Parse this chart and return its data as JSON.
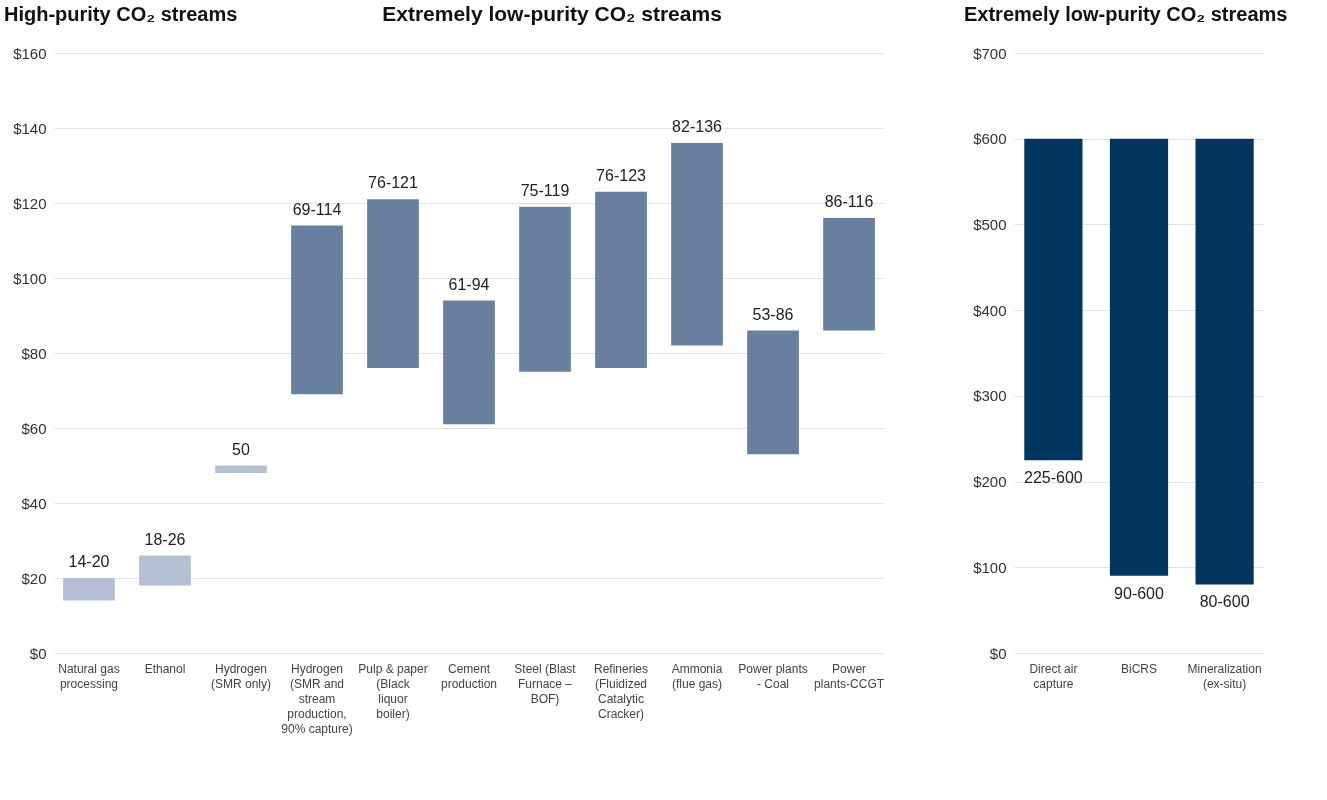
{
  "chart_data": [
    {
      "type": "bar",
      "title": "High-purity CO₂ streams",
      "annotations": [
        "Extremely low-purity CO₂ streams"
      ],
      "categories": [
        "Natural gas processing",
        "Ethanol",
        "Hydrogen (SMR only)",
        "Hydrogen (SMR and stream production, 90% capture)",
        "Pulp & paper (Black liquor boiler)",
        "Cement production",
        "Steel (Blast Furnace – BOF)",
        "Refineries (Fluidized Catalytic Cracker)",
        "Ammonia (flue gas)",
        "Power plants - Coal",
        "Power plants-CCGT"
      ],
      "base": [
        14,
        18,
        48,
        69,
        76,
        61,
        75,
        76,
        82,
        53,
        86
      ],
      "values": [
        6,
        8,
        2,
        45,
        45,
        33,
        44,
        47,
        54,
        33,
        30
      ],
      "value_labels": [
        "14-20",
        "18-26",
        "50",
        "69-114",
        "76-121",
        "61-94",
        "75-119",
        "76-123",
        "82-136",
        "53-86",
        "86-116"
      ],
      "colors": [
        "#b4bfd3",
        "#b4bfd3",
        "#b4bfd3",
        "#687fa0",
        "#687fa0",
        "#687fa0",
        "#687fa0",
        "#687fa0",
        "#687fa0",
        "#687fa0",
        "#687fa0"
      ],
      "ylim": [
        0,
        160
      ],
      "yticks": [
        {
          "value": 0,
          "label": "$0"
        },
        {
          "value": 20,
          "label": "$20"
        },
        {
          "value": 40,
          "label": "$40"
        },
        {
          "value": 60,
          "label": "$60"
        },
        {
          "value": 80,
          "label": "$80"
        },
        {
          "value": 100,
          "label": "$100"
        },
        {
          "value": 120,
          "label": "$120"
        },
        {
          "value": 140,
          "label": "$140"
        },
        {
          "value": 160,
          "label": "$160"
        }
      ],
      "grid": "y"
    },
    {
      "type": "bar",
      "title": "Extremely low-purity CO₂ streams",
      "categories": [
        "Direct air capture",
        "BiCRS",
        "Mineralization (ex-situ)"
      ],
      "base": [
        225,
        90,
        80
      ],
      "values": [
        375,
        510,
        520
      ],
      "value_labels": [
        "225-600",
        "90-600",
        "80-600"
      ],
      "colors": [
        "#00365f",
        "#00365f",
        "#00365f"
      ],
      "ylim": [
        0,
        700
      ],
      "yticks": [
        {
          "value": 0,
          "label": "$0"
        },
        {
          "value": 100,
          "label": "$100"
        },
        {
          "value": 200,
          "label": "$200"
        },
        {
          "value": 300,
          "label": "$300"
        },
        {
          "value": 400,
          "label": "$400"
        },
        {
          "value": 500,
          "label": "$500"
        },
        {
          "value": 600,
          "label": "$600"
        },
        {
          "value": 700,
          "label": "$700"
        }
      ],
      "grid": "y"
    }
  ]
}
